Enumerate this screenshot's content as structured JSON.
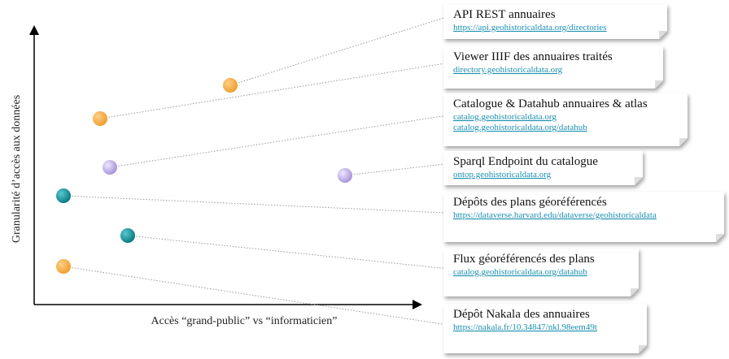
{
  "axes": {
    "x_label": "Accès “grand-public” vs “informaticien”",
    "y_label": "Granularité d’accès aux données"
  },
  "cards": [
    {
      "title": "API REST annuaires",
      "links": [
        "https://api.geohistoricaldata.org/directories"
      ]
    },
    {
      "title": "Viewer IIIF des annuaires traités",
      "links": [
        "directory.geohistoricaldata.org"
      ]
    },
    {
      "title": "Catalogue & Datahub annuaires & atlas",
      "links": [
        "catalog.geohistoricaldata.org",
        "catalog.geohistoricaldata.org/datahub"
      ]
    },
    {
      "title": "Sparql Endpoint du catalogue",
      "links": [
        "ontop.geohistoricaldata.org"
      ]
    },
    {
      "title": "Dépôts des plans géoréférencés",
      "links": [
        "https://dataverse.harvard.edu/dataverse/geohistoricaldata"
      ]
    },
    {
      "title": "Flux géoréférencés des plans",
      "links": [
        "catalog.geohistoricaldata.org/datahub"
      ]
    },
    {
      "title": "Dépôt Nakala des annuaires",
      "links": [
        "https://nakala.fr/10.34847/nkl.98eem49t"
      ]
    }
  ]
}
